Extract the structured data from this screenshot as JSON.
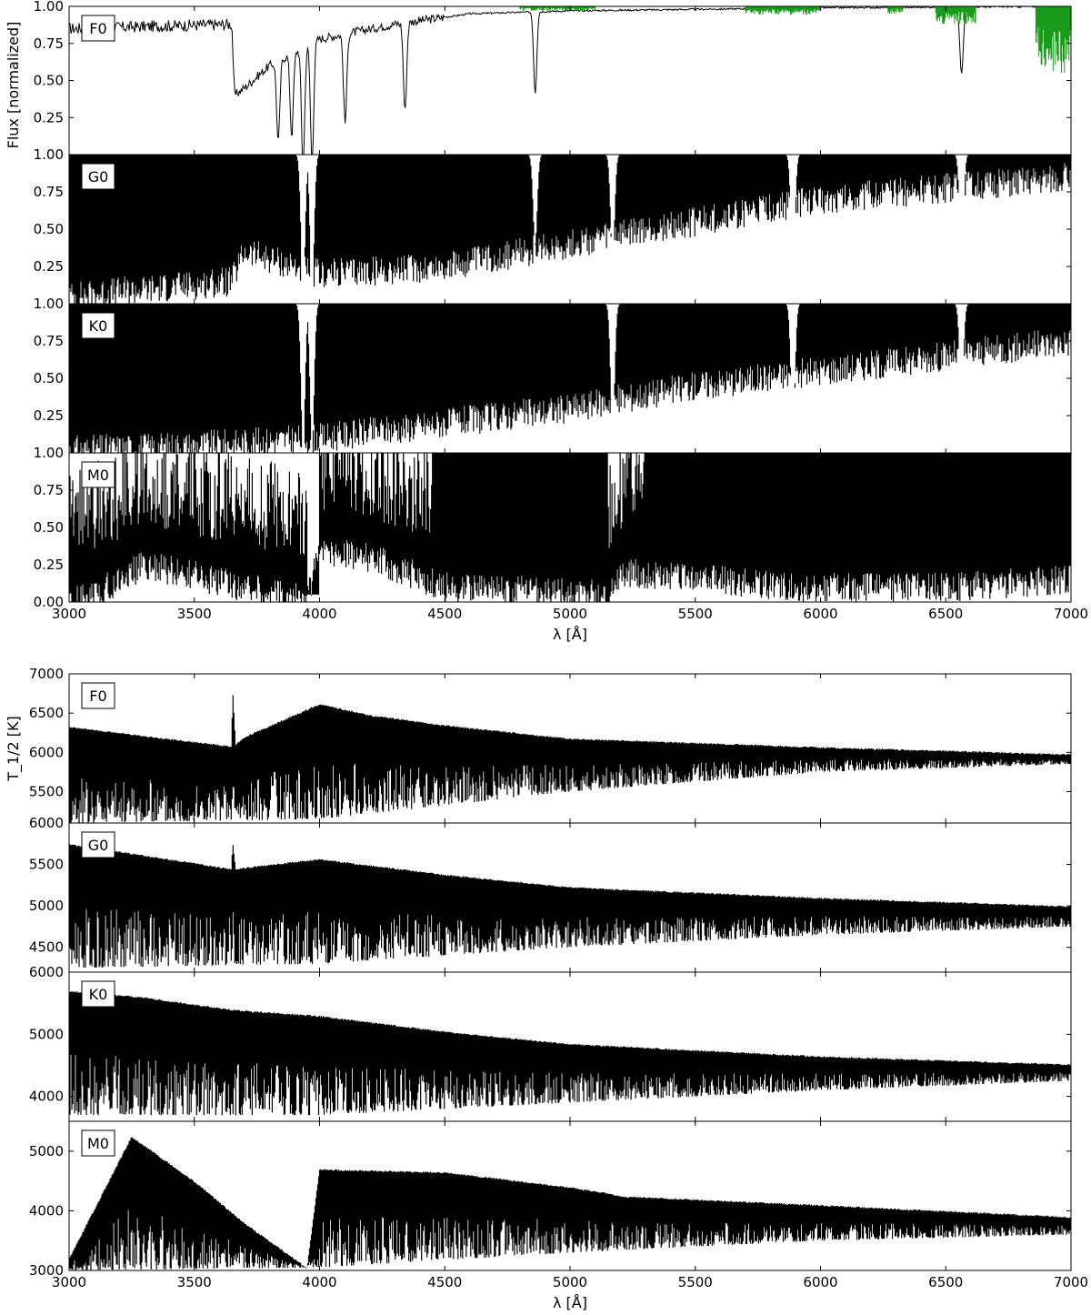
{
  "chart_data": [
    {
      "type": "line",
      "figure": "top",
      "xlabel": "λ [Å]",
      "ylabel": "Flux [normalized]",
      "xlim": [
        3000,
        7000
      ],
      "x_ticks": [
        3000,
        3500,
        4000,
        4500,
        5000,
        5500,
        6000,
        6500,
        7000
      ],
      "x_tick_labels": [
        "3000",
        "3500",
        "4000",
        "4500",
        "5000",
        "5500",
        "6000",
        "6500",
        "7000"
      ],
      "grid": false,
      "colors": {
        "line": "#000000",
        "telluric": "#1a9a1a"
      },
      "panels": [
        {
          "label": "F0",
          "ylim": [
            0,
            1
          ],
          "y_tick_labels": [
            "1.00",
            "0.75",
            "0.50",
            "0.25"
          ],
          "y_ticks": [
            1.0,
            0.75,
            0.5,
            0.25
          ],
          "continuum_points": [
            [
              3000,
              0.85
            ],
            [
              3650,
              0.88
            ],
            [
              3660,
              0.4
            ],
            [
              3700,
              0.45
            ],
            [
              3800,
              0.6
            ],
            [
              4000,
              0.78
            ],
            [
              4300,
              0.88
            ],
            [
              4600,
              0.95
            ],
            [
              5000,
              0.97
            ],
            [
              6000,
              0.99
            ],
            [
              7000,
              1.0
            ]
          ],
          "absorption_lines": [
            {
              "x": 3835,
              "depth": 0.55
            },
            {
              "x": 3889,
              "depth": 0.55
            },
            {
              "x": 3934,
              "depth": 0.8
            },
            {
              "x": 3970,
              "depth": 0.8
            },
            {
              "x": 4102,
              "depth": 0.6
            },
            {
              "x": 4341,
              "depth": 0.6
            },
            {
              "x": 4861,
              "depth": 0.55
            },
            {
              "x": 6563,
              "depth": 0.45
            }
          ],
          "noise": 0.04,
          "telluric_bands": [
            [
              4800,
              5100,
              0.03
            ],
            [
              5700,
              6000,
              0.06
            ],
            [
              6270,
              6330,
              0.05
            ],
            [
              6460,
              6620,
              0.12
            ],
            [
              6860,
              7000,
              0.45
            ]
          ]
        },
        {
          "label": "G0",
          "ylim": [
            0,
            1
          ],
          "y_tick_labels": [
            "1.00",
            "0.75",
            "0.50",
            "0.25"
          ],
          "y_ticks": [
            1.0,
            0.75,
            0.5,
            0.25
          ],
          "continuum_points": [
            [
              3000,
              0.05
            ],
            [
              3650,
              0.15
            ],
            [
              3700,
              0.35
            ],
            [
              4000,
              0.2
            ],
            [
              4500,
              0.25
            ],
            [
              5000,
              0.4
            ],
            [
              5500,
              0.55
            ],
            [
              6000,
              0.7
            ],
            [
              7000,
              0.85
            ]
          ],
          "absorption_lines": [
            {
              "x": 3934,
              "depth": 0.95
            },
            {
              "x": 3970,
              "depth": 0.95
            },
            {
              "x": 4861,
              "depth": 0.6
            },
            {
              "x": 5170,
              "depth": 0.7
            },
            {
              "x": 5890,
              "depth": 0.75
            },
            {
              "x": 6563,
              "depth": 0.65
            }
          ],
          "noise": 0.0
        },
        {
          "label": "K0",
          "ylim": [
            0,
            1
          ],
          "y_tick_labels": [
            "1.00",
            "0.75",
            "0.50",
            "0.25"
          ],
          "y_ticks": [
            1.0,
            0.75,
            0.5,
            0.25
          ],
          "continuum_points": [
            [
              3000,
              0.02
            ],
            [
              3500,
              0.05
            ],
            [
              4000,
              0.1
            ],
            [
              4500,
              0.2
            ],
            [
              5000,
              0.3
            ],
            [
              5500,
              0.45
            ],
            [
              6000,
              0.55
            ],
            [
              7000,
              0.75
            ]
          ],
          "absorption_lines": [
            {
              "x": 3934,
              "depth": 0.98
            },
            {
              "x": 3970,
              "depth": 0.98
            },
            {
              "x": 5170,
              "depth": 0.85
            },
            {
              "x": 5890,
              "depth": 0.85
            },
            {
              "x": 6563,
              "depth": 0.6
            }
          ],
          "noise": 0.0
        },
        {
          "label": "M0",
          "ylim": [
            0,
            1
          ],
          "y_tick_labels": [
            "1.00",
            "0.75",
            "0.50",
            "0.25",
            "0.00"
          ],
          "y_ticks": [
            1.0,
            0.75,
            0.5,
            0.25,
            0.0
          ],
          "continuum_points": [
            [
              3000,
              0.0
            ],
            [
              3100,
              0.05
            ],
            [
              3300,
              0.25
            ],
            [
              3700,
              0.1
            ],
            [
              3950,
              0.02
            ],
            [
              4000,
              0.35
            ],
            [
              4200,
              0.3
            ],
            [
              4500,
              0.1
            ],
            [
              5150,
              0.05
            ],
            [
              5200,
              0.2
            ],
            [
              5600,
              0.15
            ],
            [
              5900,
              0.1
            ],
            [
              6500,
              0.1
            ],
            [
              7000,
              0.15
            ]
          ],
          "absorption_lines": [
            {
              "x": 5890,
              "depth": 0.9
            }
          ],
          "noise": 0.0
        }
      ]
    },
    {
      "type": "line",
      "figure": "bottom",
      "xlabel": "λ [Å]",
      "ylabel": "T_1/2 [K]",
      "xlim": [
        3000,
        7000
      ],
      "x_ticks": [
        3000,
        3500,
        4000,
        4500,
        5000,
        5500,
        6000,
        6500,
        7000
      ],
      "x_tick_labels": [
        "3000",
        "3500",
        "4000",
        "4500",
        "5000",
        "5500",
        "6000",
        "6500",
        "7000"
      ],
      "grid": false,
      "panels": [
        {
          "label": "F0",
          "ylim": [
            5100,
            7000
          ],
          "y_tick_labels": [
            "7000",
            "6500",
            "6000",
            "5500"
          ],
          "y_ticks": [
            7000,
            6500,
            6000,
            5500
          ],
          "upper_points": [
            [
              3000,
              6330
            ],
            [
              3650,
              6080
            ],
            [
              3652,
              6900
            ],
            [
              3665,
              6100
            ],
            [
              3700,
              6200
            ],
            [
              4000,
              6620
            ],
            [
              4200,
              6480
            ],
            [
              4500,
              6350
            ],
            [
              5000,
              6180
            ],
            [
              6000,
              6070
            ],
            [
              7000,
              5980
            ]
          ],
          "lower_points": [
            [
              3000,
              5100
            ],
            [
              4000,
              5150
            ],
            [
              5000,
              5500
            ],
            [
              6000,
              5750
            ],
            [
              7000,
              5850
            ]
          ]
        },
        {
          "label": "G0",
          "ylim": [
            4200,
            6000
          ],
          "y_tick_labels": [
            "6000",
            "5500",
            "5000",
            "4500"
          ],
          "y_ticks": [
            6000,
            5500,
            5000,
            4500
          ],
          "upper_points": [
            [
              3000,
              5750
            ],
            [
              3650,
              5450
            ],
            [
              3652,
              5820
            ],
            [
              3665,
              5450
            ],
            [
              4000,
              5570
            ],
            [
              4500,
              5380
            ],
            [
              5000,
              5230
            ],
            [
              6000,
              5100
            ],
            [
              7000,
              5000
            ]
          ],
          "lower_points": [
            [
              3000,
              4250
            ],
            [
              4000,
              4300
            ],
            [
              5000,
              4500
            ],
            [
              6000,
              4650
            ],
            [
              7000,
              4750
            ]
          ]
        },
        {
          "label": "K0",
          "ylim": [
            3600,
            6000
          ],
          "y_tick_labels": [
            "6000",
            "5000",
            "4000"
          ],
          "y_ticks": [
            6000,
            5000,
            4000
          ],
          "upper_points": [
            [
              3000,
              5700
            ],
            [
              3300,
              5600
            ],
            [
              3650,
              5400
            ],
            [
              4000,
              5300
            ],
            [
              4500,
              5050
            ],
            [
              5000,
              4850
            ],
            [
              6000,
              4650
            ],
            [
              7000,
              4520
            ]
          ],
          "lower_points": [
            [
              3000,
              3700
            ],
            [
              4000,
              3700
            ],
            [
              5000,
              3900
            ],
            [
              6000,
              4100
            ],
            [
              7000,
              4250
            ]
          ]
        },
        {
          "label": "M0",
          "ylim": [
            3000,
            5500
          ],
          "y_tick_labels": [
            "5000",
            "4000",
            "3000"
          ],
          "y_ticks": [
            5000,
            4000,
            3000
          ],
          "upper_points": [
            [
              3000,
              3200
            ],
            [
              3250,
              5250
            ],
            [
              3500,
              4500
            ],
            [
              3700,
              3800
            ],
            [
              3950,
              3050
            ],
            [
              4000,
              4700
            ],
            [
              4500,
              4650
            ],
            [
              5000,
              4400
            ],
            [
              5150,
              4300
            ],
            [
              5200,
              4250
            ],
            [
              6000,
              4100
            ],
            [
              7000,
              3900
            ]
          ],
          "lower_points": [
            [
              3000,
              3000
            ],
            [
              4000,
              3050
            ],
            [
              5000,
              3300
            ],
            [
              6000,
              3500
            ],
            [
              7000,
              3600
            ]
          ]
        }
      ]
    }
  ]
}
